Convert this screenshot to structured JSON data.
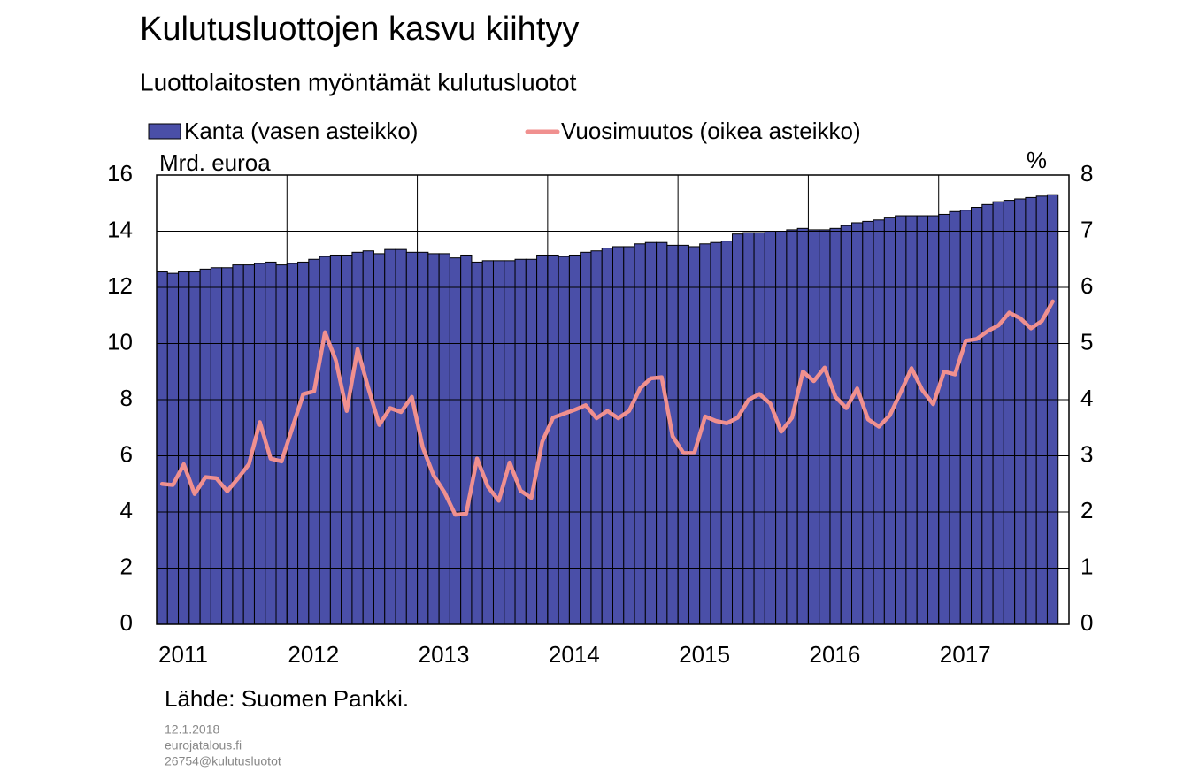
{
  "chart_data": {
    "type": "bar",
    "title": "Kulutusluottojen kasvu kiihtyy",
    "subtitle": "Luottolaitosten myöntämät kulutusluotot",
    "y_unit": "Mrd. euroa",
    "y2_unit": "%",
    "source": "Lähde: Suomen Pankki.",
    "notes": [
      "12.1.2018",
      "eurojatalous.fi",
      "26754@kulutusluotot"
    ],
    "categories": [
      "2011",
      null,
      null,
      null,
      null,
      null,
      null,
      null,
      null,
      null,
      null,
      null,
      "2012",
      null,
      null,
      null,
      null,
      null,
      null,
      null,
      null,
      null,
      null,
      null,
      "2013",
      null,
      null,
      null,
      null,
      null,
      null,
      null,
      null,
      null,
      null,
      null,
      "2014",
      null,
      null,
      null,
      null,
      null,
      null,
      null,
      null,
      null,
      null,
      null,
      "2015",
      null,
      null,
      null,
      null,
      null,
      null,
      null,
      null,
      null,
      null,
      null,
      "2016",
      null,
      null,
      null,
      null,
      null,
      null,
      null,
      null,
      null,
      null,
      null,
      "2017",
      null,
      null,
      null,
      null,
      null,
      null,
      null,
      null,
      null,
      null
    ],
    "series": [
      {
        "name": "Kanta (vasen asteikko)",
        "type": "bar",
        "color": "#4a4fa8",
        "axis": "y",
        "values": [
          12.55,
          12.5,
          12.55,
          12.55,
          12.65,
          12.7,
          12.7,
          12.8,
          12.8,
          12.85,
          12.9,
          12.8,
          12.85,
          12.9,
          13.0,
          13.1,
          13.15,
          13.15,
          13.25,
          13.3,
          13.2,
          13.35,
          13.35,
          13.25,
          13.25,
          13.2,
          13.2,
          13.05,
          13.15,
          12.9,
          12.95,
          12.95,
          12.95,
          13.0,
          13.0,
          13.15,
          13.15,
          13.1,
          13.15,
          13.25,
          13.3,
          13.4,
          13.45,
          13.45,
          13.55,
          13.6,
          13.6,
          13.5,
          13.5,
          13.45,
          13.55,
          13.6,
          13.65,
          13.9,
          13.95,
          13.95,
          14.0,
          14.0,
          14.05,
          14.1,
          14.05,
          14.05,
          14.1,
          14.2,
          14.3,
          14.35,
          14.4,
          14.5,
          14.55,
          14.55,
          14.55,
          14.55,
          14.6,
          14.7,
          14.75,
          14.85,
          14.95,
          15.05,
          15.1,
          15.15,
          15.2,
          15.25,
          15.3
        ]
      },
      {
        "name": "Vuosimuutos (oikea asteikko)",
        "type": "line",
        "color": "#f0908f",
        "axis": "y2",
        "values": [
          2.5,
          2.48,
          2.85,
          2.32,
          2.62,
          2.6,
          2.37,
          2.6,
          2.85,
          3.6,
          2.95,
          2.9,
          3.5,
          4.1,
          4.15,
          5.2,
          4.7,
          3.8,
          4.9,
          4.2,
          3.55,
          3.85,
          3.78,
          4.05,
          3.15,
          2.65,
          2.35,
          1.95,
          1.97,
          2.95,
          2.45,
          2.2,
          2.88,
          2.38,
          2.25,
          3.25,
          3.68,
          3.75,
          3.82,
          3.9,
          3.67,
          3.8,
          3.67,
          3.8,
          4.2,
          4.38,
          4.4,
          3.35,
          3.05,
          3.05,
          3.7,
          3.62,
          3.58,
          3.68,
          4.0,
          4.1,
          3.93,
          3.43,
          3.68,
          4.5,
          4.33,
          4.57,
          4.05,
          3.85,
          4.2,
          3.65,
          3.52,
          3.72,
          4.13,
          4.56,
          4.17,
          3.92,
          4.5,
          4.45,
          5.05,
          5.08,
          5.22,
          5.32,
          5.55,
          5.45,
          5.27,
          5.4,
          5.75
        ]
      }
    ],
    "ylim": [
      0,
      16
    ],
    "yticks": [
      0,
      2,
      4,
      6,
      8,
      10,
      12,
      14,
      16
    ],
    "y2lim": [
      0,
      8
    ],
    "y2ticks": [
      0,
      1,
      2,
      3,
      4,
      5,
      6,
      7,
      8
    ],
    "grid": true
  }
}
